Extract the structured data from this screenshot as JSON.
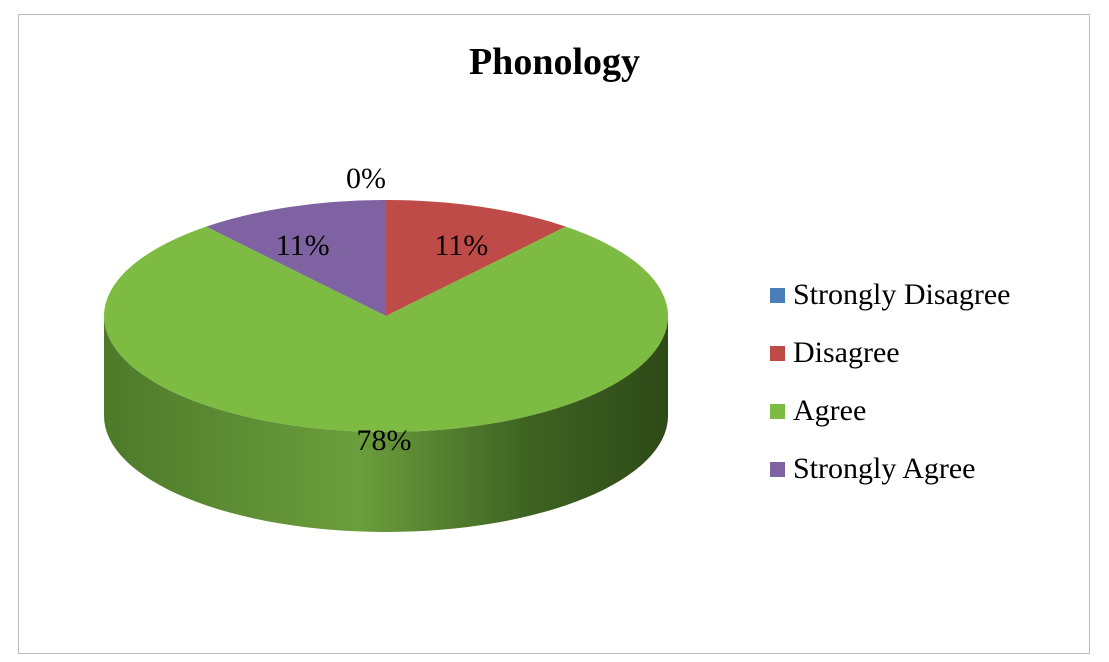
{
  "chart_data": {
    "type": "pie",
    "title": "Phonology",
    "categories": [
      "Strongly Disagree",
      "Disagree",
      "Agree",
      "Strongly Agree"
    ],
    "values": [
      0,
      11,
      78,
      11
    ],
    "labels": [
      "0%",
      "11%",
      "78%",
      "11%"
    ],
    "colors": [
      "#4a7ebb",
      "#be4b48",
      "#7dbb42",
      "#7e62a1"
    ],
    "legend_position": "right",
    "style": "3d"
  }
}
